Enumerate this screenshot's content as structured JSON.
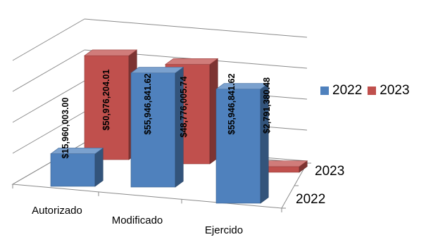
{
  "chart_data": {
    "type": "bar",
    "style": "3d-clustered-column",
    "categories": [
      "Autorizado",
      "Modificado",
      "Ejercido"
    ],
    "depth_labels": [
      "2023",
      "2022"
    ],
    "series": [
      {
        "name": "2022",
        "color": "#4F81BD",
        "values": [
          15960003.0,
          55946841.62,
          55946841.62
        ],
        "labels": [
          "$15,960,003.00",
          "$55,946,841.62",
          "$55,946,841.62"
        ]
      },
      {
        "name": "2023",
        "color": "#C0504D",
        "values": [
          50976204.01,
          48776005.74,
          2791380.48
        ],
        "labels": [
          "$50,976,204.01",
          "$48,776,005.74",
          "$2,791,380.48"
        ]
      }
    ],
    "legend_position": "right",
    "grid": true
  }
}
